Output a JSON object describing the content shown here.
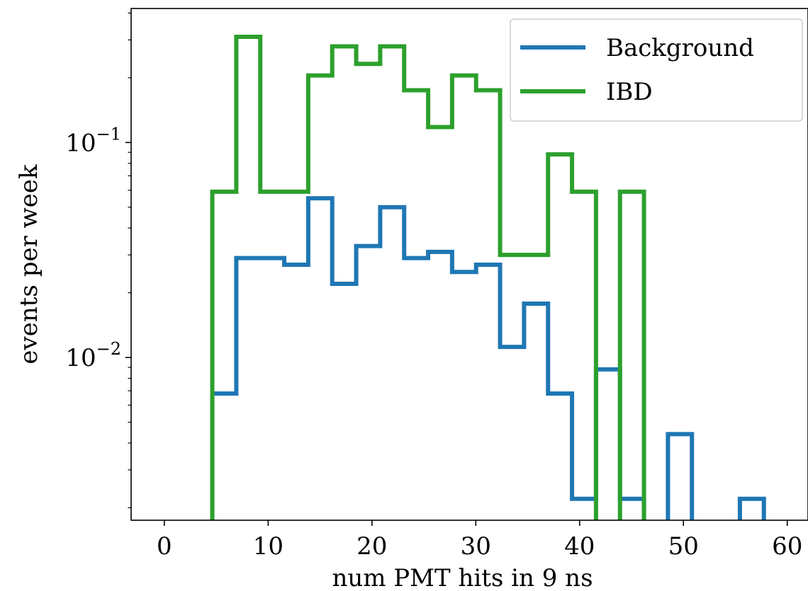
{
  "chart_data": {
    "type": "step-histogram",
    "xlabel": "num PMT hits in 9 ns",
    "ylabel": "events per week",
    "xlim": [
      -3.2,
      62
    ],
    "ylim": [
      0.00175,
      0.42
    ],
    "yscale": "log",
    "x_ticks": [
      0,
      10,
      20,
      30,
      40,
      50,
      60
    ],
    "y_ticks": [
      {
        "value": 0.1,
        "base": "10",
        "exp": "−1"
      },
      {
        "value": 0.01,
        "base": "10",
        "exp": "−2"
      }
    ],
    "legend": {
      "placement": "top-right"
    },
    "series": [
      {
        "name": "Background",
        "color": "#1f77b4",
        "edges": [
          4.62,
          6.93,
          9.24,
          11.55,
          13.86,
          16.17,
          18.48,
          20.79,
          23.1,
          25.41,
          27.72,
          30.03,
          32.34,
          34.65,
          36.96,
          39.27,
          41.58,
          43.89,
          46.2,
          48.51,
          50.82,
          53.13,
          55.44,
          57.75
        ],
        "values": [
          0.0068,
          0.029,
          0.029,
          0.027,
          0.055,
          0.022,
          0.033,
          0.05,
          0.029,
          0.031,
          0.025,
          0.027,
          0.0112,
          0.0178,
          0.0068,
          0.0022,
          0.0088,
          0.0022,
          0,
          0.0044,
          0,
          0,
          0.0022
        ]
      },
      {
        "name": "IBD",
        "color": "#2ca02c",
        "edges": [
          4.62,
          6.93,
          9.24,
          11.55,
          13.86,
          16.17,
          18.48,
          20.79,
          23.1,
          25.41,
          27.72,
          30.03,
          32.34,
          34.65,
          36.96,
          39.27,
          41.58,
          43.89,
          46.2
        ],
        "values": [
          0.059,
          0.31,
          0.059,
          0.059,
          0.205,
          0.28,
          0.232,
          0.28,
          0.175,
          0.118,
          0.205,
          0.175,
          0.03,
          0.03,
          0.088,
          0.059,
          0,
          0.059
        ]
      }
    ]
  }
}
